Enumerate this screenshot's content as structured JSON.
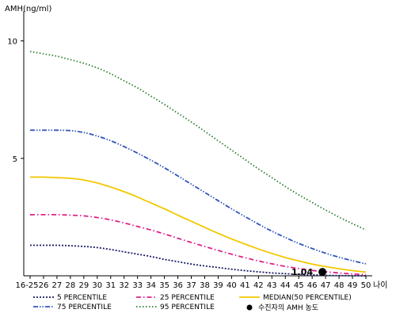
{
  "chart_data": {
    "type": "line",
    "xlabel": "나이",
    "ylabel": "AMH(ng/ml)",
    "categories": [
      "16-25",
      "26",
      "27",
      "28",
      "29",
      "30",
      "31",
      "32",
      "33",
      "34",
      "35",
      "36",
      "37",
      "38",
      "39",
      "40",
      "41",
      "42",
      "43",
      "44",
      "45",
      "46",
      "47",
      "48",
      "49",
      "50"
    ],
    "yticks": [
      5,
      10
    ],
    "ylim": [
      0,
      11
    ],
    "series": [
      {
        "name": "5 PERCENTILE",
        "color": "#1a1a66",
        "style": "dotted",
        "values": [
          1.3,
          1.3,
          1.3,
          1.28,
          1.25,
          1.2,
          1.12,
          1.02,
          0.92,
          0.82,
          0.7,
          0.6,
          0.5,
          0.42,
          0.35,
          0.28,
          0.22,
          0.17,
          0.12,
          0.09,
          0.06,
          0.04,
          0.02,
          0.01,
          0.005,
          0.0
        ]
      },
      {
        "name": "25 PERCENTILE",
        "color": "#e0208a",
        "style": "dashdot",
        "values": [
          2.6,
          2.6,
          2.6,
          2.58,
          2.55,
          2.48,
          2.38,
          2.25,
          2.1,
          1.95,
          1.78,
          1.6,
          1.42,
          1.25,
          1.08,
          0.92,
          0.77,
          0.63,
          0.51,
          0.4,
          0.31,
          0.23,
          0.17,
          0.12,
          0.08,
          0.05
        ]
      },
      {
        "name": "MEDIAN(50 PERCENTILE)",
        "color": "#f2c800",
        "style": "solid",
        "values": [
          4.2,
          4.2,
          4.18,
          4.15,
          4.08,
          3.95,
          3.78,
          3.58,
          3.35,
          3.1,
          2.85,
          2.58,
          2.32,
          2.06,
          1.81,
          1.57,
          1.35,
          1.14,
          0.95,
          0.78,
          0.63,
          0.5,
          0.39,
          0.3,
          0.22,
          0.16
        ]
      },
      {
        "name": "75 PERCENTILE",
        "color": "#3355bb",
        "style": "dashdotdot",
        "values": [
          6.2,
          6.2,
          6.2,
          6.18,
          6.1,
          5.95,
          5.75,
          5.5,
          5.22,
          4.92,
          4.6,
          4.25,
          3.9,
          3.55,
          3.2,
          2.85,
          2.52,
          2.2,
          1.9,
          1.63,
          1.38,
          1.16,
          0.96,
          0.79,
          0.64,
          0.51
        ]
      },
      {
        "name": "95 PERCENTILE",
        "color": "#2e7d32",
        "style": "fine-dotted",
        "values": [
          9.55,
          9.45,
          9.35,
          9.2,
          9.05,
          8.85,
          8.6,
          8.3,
          8.0,
          7.65,
          7.3,
          6.92,
          6.55,
          6.15,
          5.75,
          5.35,
          4.95,
          4.55,
          4.18,
          3.8,
          3.45,
          3.12,
          2.8,
          2.5,
          2.22,
          1.95
        ]
      }
    ],
    "annotation": {
      "label": "1.04",
      "x": "47",
      "y": 1.04,
      "marker": "black-circle"
    },
    "legend_extra": "수진자의 AMH 농도",
    "legend_position": "bottom",
    "grid": false
  }
}
